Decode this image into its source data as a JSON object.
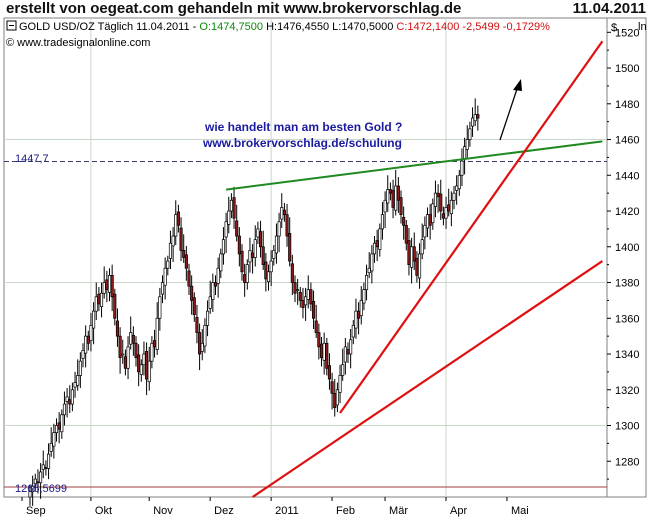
{
  "header": {
    "left": "erstellt von oegeat.com gehandeln mit www.brokervorschlag.de",
    "right": "11.04.2011"
  },
  "chart_info": {
    "symbol": "GOLD USD/OZ Täglich",
    "date": "11.04.2011",
    "open": "O:1474,7500",
    "high": "H:1476,4550",
    "low": "L:1470,5000",
    "close_change": "C:1472,1400 -2,5499 -0,1729%",
    "source": "© www.tradesignalonline.com",
    "currency": "$"
  },
  "annotation": {
    "line1": "wie handelt man am besten Gold ?",
    "line2": "www.brokervorschlag.de/schulung"
  },
  "levels": {
    "upper_label": "1447,7",
    "lower_label": "1265,5699"
  },
  "colors": {
    "grid": "#c9d7c9",
    "up_candle": "#ffffff",
    "down_candle": "#8b1a1a",
    "candle_outline": "#000000",
    "green_line": "#1f8a1f",
    "red_line": "#e01010",
    "dashed_level": "#3a3a6a",
    "ohlc_blue": "#1010a0",
    "ohlc_green": "#0a8a0a",
    "ohlc_red": "#d01010"
  },
  "chart_data": {
    "type": "candlestick",
    "title": "GOLD USD/OZ Täglich",
    "ylim": [
      1260,
      1528
    ],
    "y_ticks": [
      1280,
      1300,
      1320,
      1340,
      1360,
      1380,
      1400,
      1420,
      1440,
      1460,
      1480,
      1500,
      1520
    ],
    "x_ticks": [
      "Sep",
      "Okt",
      "Nov",
      "Dez",
      "2011",
      "Feb",
      "Mär",
      "Apr",
      "Mai"
    ],
    "x_tick_day_index": [
      0,
      26,
      48,
      71,
      94,
      117,
      137,
      160,
      183
    ],
    "horizontal_levels": [
      1447.7,
      1265.5699
    ],
    "last_close": 1472.14,
    "closes": [
      1263,
      1266,
      1270,
      1268,
      1274,
      1278,
      1276,
      1284,
      1290,
      1296,
      1300,
      1298,
      1306,
      1312,
      1316,
      1312,
      1320,
      1324,
      1328,
      1336,
      1342,
      1350,
      1346,
      1356,
      1364,
      1372,
      1368,
      1374,
      1380,
      1376,
      1384,
      1372,
      1360,
      1350,
      1338,
      1340,
      1332,
      1344,
      1352,
      1346,
      1338,
      1330,
      1334,
      1340,
      1326,
      1336,
      1346,
      1344,
      1360,
      1372,
      1380,
      1388,
      1392,
      1402,
      1406,
      1418,
      1412,
      1398,
      1394,
      1388,
      1378,
      1370,
      1362,
      1352,
      1340,
      1346,
      1356,
      1364,
      1372,
      1380,
      1378,
      1388,
      1396,
      1404,
      1414,
      1420,
      1426,
      1416,
      1406,
      1396,
      1386,
      1380,
      1390,
      1398,
      1394,
      1404,
      1410,
      1400,
      1390,
      1382,
      1386,
      1392,
      1398,
      1406,
      1414,
      1422,
      1418,
      1406,
      1392,
      1380,
      1374,
      1376,
      1370,
      1366,
      1372,
      1376,
      1368,
      1360,
      1352,
      1344,
      1338,
      1346,
      1332,
      1326,
      1318,
      1310,
      1320,
      1328,
      1334,
      1344,
      1340,
      1348,
      1356,
      1364,
      1360,
      1370,
      1376,
      1384,
      1388,
      1396,
      1402,
      1400,
      1410,
      1418,
      1426,
      1432,
      1430,
      1422,
      1434,
      1426,
      1418,
      1412,
      1402,
      1390,
      1400,
      1392,
      1384,
      1396,
      1404,
      1412,
      1418,
      1412,
      1424,
      1430,
      1428,
      1420,
      1416,
      1422,
      1420,
      1426,
      1430,
      1434,
      1440,
      1448,
      1456,
      1460,
      1466,
      1472,
      1474,
      1472
    ]
  }
}
